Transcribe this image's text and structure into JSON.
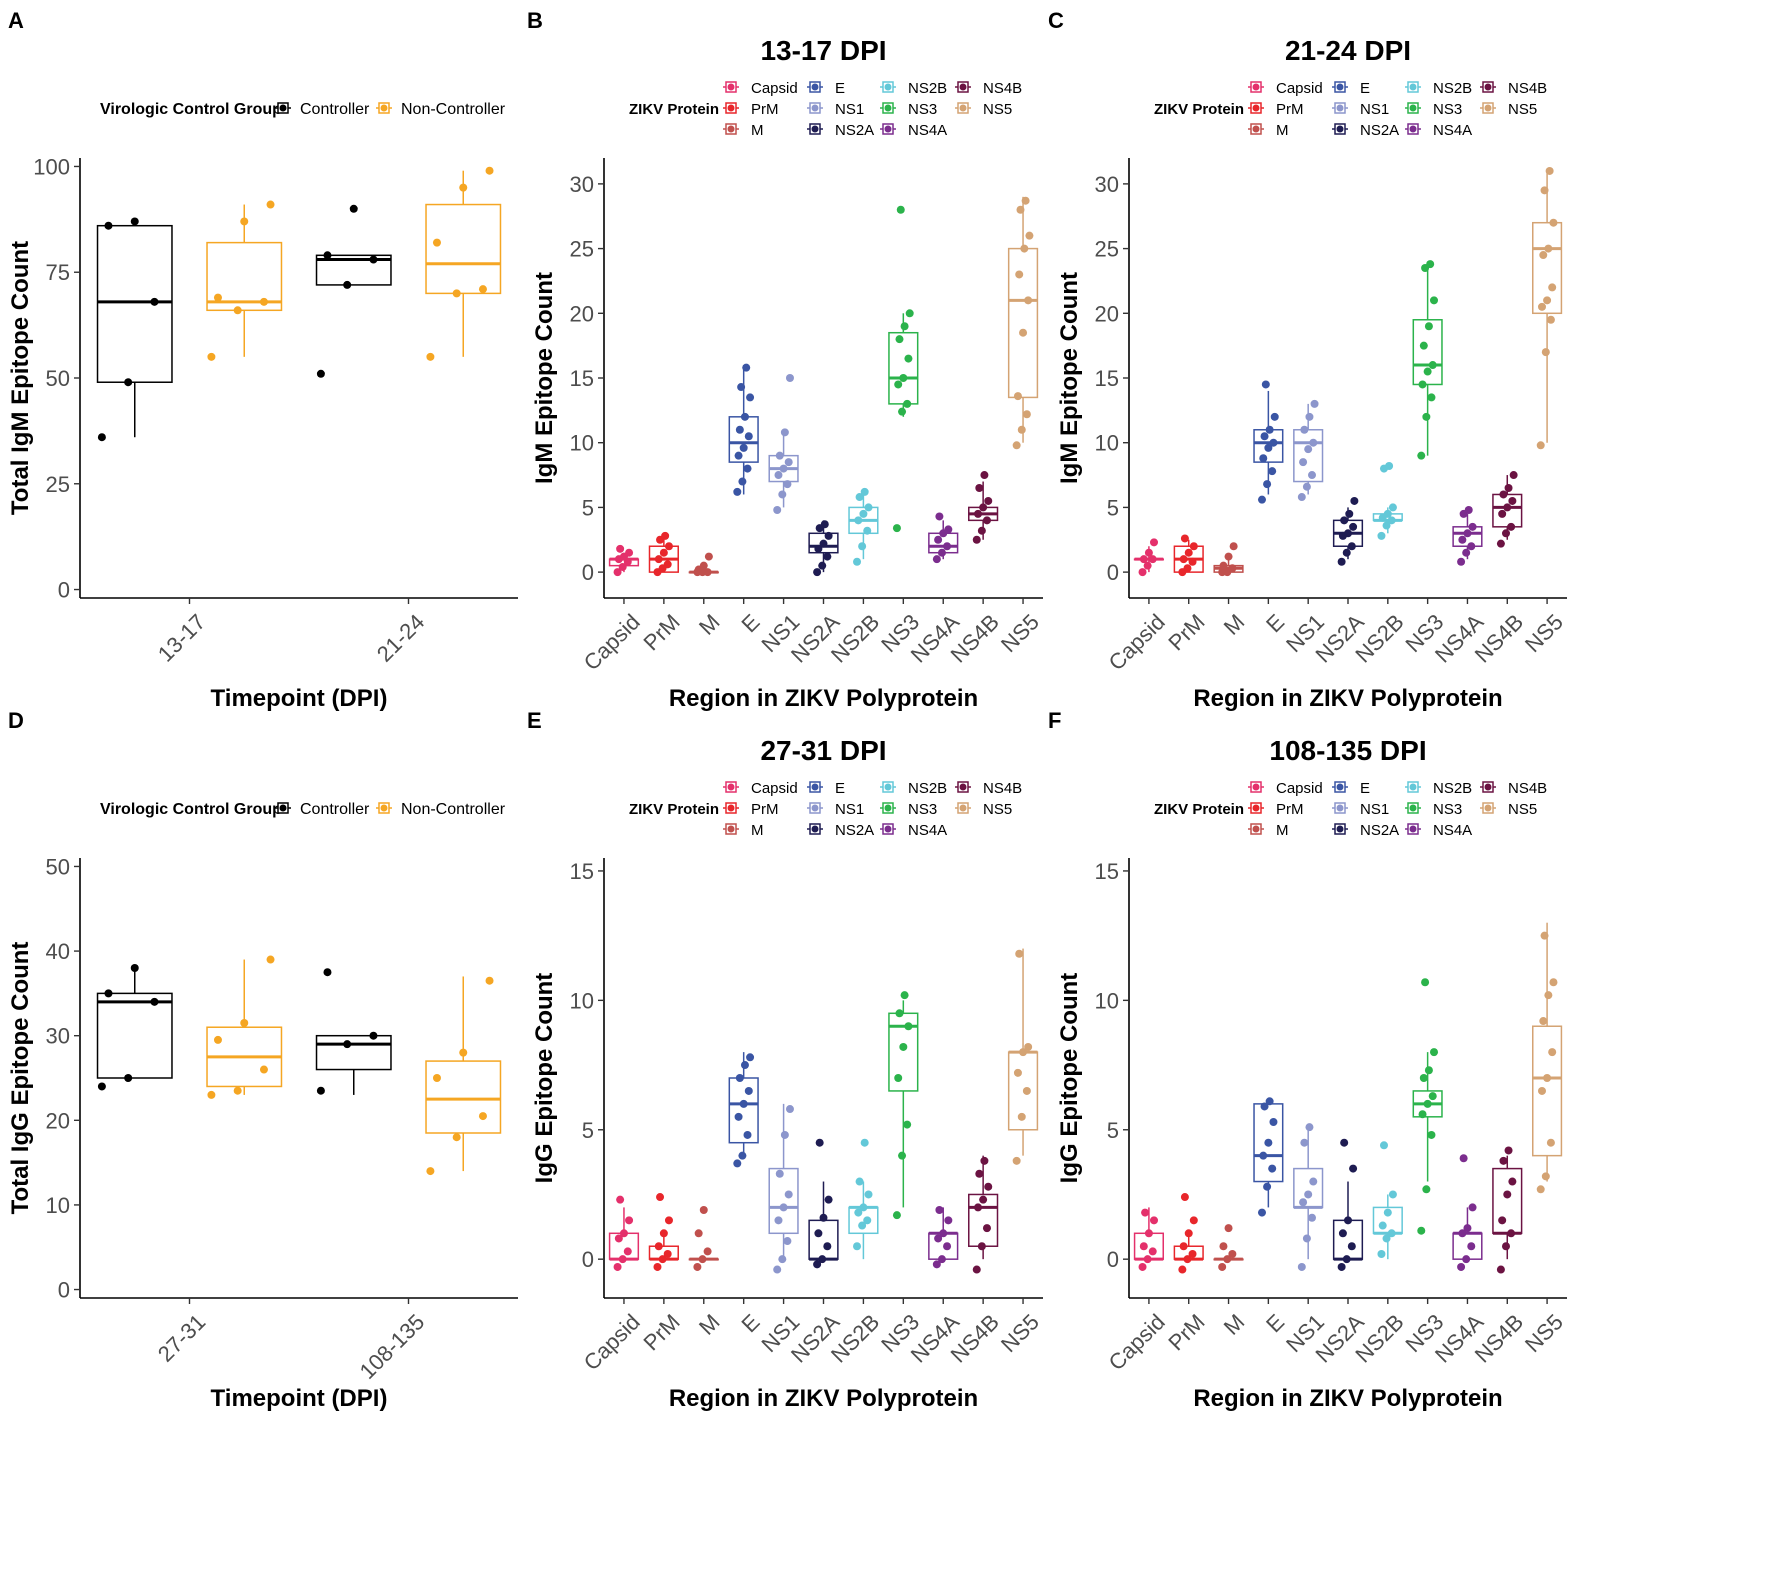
{
  "figure": {
    "groups_legend_title": "Virologic Control Group",
    "groups": [
      {
        "name": "Controller",
        "color": "#000000"
      },
      {
        "name": "Non-Controller",
        "color": "#F5A623"
      }
    ],
    "protein_legend_title": "ZIKV Protein",
    "proteins": [
      {
        "name": "Capsid",
        "color": "#E4306B"
      },
      {
        "name": "PrM",
        "color": "#E8262B"
      },
      {
        "name": "M",
        "color": "#C0504D"
      },
      {
        "name": "E",
        "color": "#3A55A4"
      },
      {
        "name": "NS1",
        "color": "#8C96CC"
      },
      {
        "name": "NS2A",
        "color": "#1E1C52"
      },
      {
        "name": "NS2B",
        "color": "#63C8D8"
      },
      {
        "name": "NS3",
        "color": "#2BB34B"
      },
      {
        "name": "NS4A",
        "color": "#7B2D8E"
      },
      {
        "name": "NS4B",
        "color": "#6B1342"
      },
      {
        "name": "NS5",
        "color": "#D4A373"
      }
    ]
  },
  "chart_data": [
    {
      "panel": "A",
      "type": "box",
      "title": "",
      "xlabel": "Timepoint (DPI)",
      "ylabel": "Total IgM Epitope Count",
      "ylim": [
        -2,
        102
      ],
      "yticks": [
        0,
        25,
        50,
        75,
        100
      ],
      "categories": [
        "13-17",
        "21-24"
      ],
      "series": [
        {
          "name": "Controller",
          "boxes": [
            {
              "min": 36,
              "q1": 49,
              "median": 68,
              "q3": 86,
              "max": 87
            },
            {
              "min": 72,
              "q1": 72,
              "median": 78,
              "q3": 79,
              "max": 79
            }
          ],
          "points": [
            [
              36,
              49,
              68,
              86,
              87
            ],
            [
              51,
              72,
              78,
              79,
              90
            ]
          ]
        },
        {
          "name": "Non-Controller",
          "boxes": [
            {
              "min": 55,
              "q1": 66,
              "median": 68,
              "q3": 82,
              "max": 91
            },
            {
              "min": 55,
              "q1": 70,
              "median": 77,
              "q3": 91,
              "max": 99
            }
          ],
          "points": [
            [
              55,
              66,
              68,
              69,
              87,
              91
            ],
            [
              55,
              70,
              71,
              82,
              95,
              99
            ]
          ]
        }
      ]
    },
    {
      "panel": "B",
      "type": "box",
      "title": "13-17 DPI",
      "xlabel": "Region in ZIKV Polyprotein",
      "ylabel": "IgM Epitope Count",
      "ylim": [
        -2,
        32
      ],
      "yticks": [
        0,
        5,
        10,
        15,
        20,
        25,
        30
      ],
      "categories": [
        "Capsid",
        "PrM",
        "M",
        "E",
        "NS1",
        "NS2A",
        "NS2B",
        "NS3",
        "NS4A",
        "NS4B",
        "NS5"
      ],
      "boxes": [
        {
          "min": 0,
          "q1": 0.5,
          "median": 1,
          "q3": 1,
          "max": 1.5
        },
        {
          "min": 0,
          "q1": 0,
          "median": 1,
          "q3": 2,
          "max": 3
        },
        {
          "min": 0,
          "q1": 0,
          "median": 0,
          "q3": 0,
          "max": 0
        },
        {
          "min": 6,
          "q1": 8.5,
          "median": 10,
          "q3": 12,
          "max": 16
        },
        {
          "min": 5,
          "q1": 7,
          "median": 8,
          "q3": 9,
          "max": 11
        },
        {
          "min": 0,
          "q1": 1.5,
          "median": 2,
          "q3": 3,
          "max": 4
        },
        {
          "min": 1,
          "q1": 3,
          "median": 4,
          "q3": 5,
          "max": 6
        },
        {
          "min": 12,
          "q1": 13,
          "median": 15,
          "q3": 18.5,
          "max": 20
        },
        {
          "min": 1,
          "q1": 1.5,
          "median": 2,
          "q3": 3,
          "max": 4
        },
        {
          "min": 2.5,
          "q1": 4,
          "median": 4.5,
          "q3": 5,
          "max": 7
        },
        {
          "min": 10,
          "q1": 13.5,
          "median": 21,
          "q3": 25,
          "max": 29
        }
      ],
      "points": [
        [
          0,
          0.4,
          0.8,
          1,
          1.2,
          1.5,
          1.8
        ],
        [
          0,
          0.3,
          0.6,
          1,
          1.5,
          2,
          2.5,
          2.8
        ],
        [
          0,
          0,
          0,
          0.2,
          0.5,
          1.2
        ],
        [
          6.2,
          7,
          8,
          9,
          9.6,
          10.5,
          11,
          12,
          13.5,
          14.3,
          15.8
        ],
        [
          4.8,
          6,
          6.8,
          7.5,
          8,
          8.5,
          9,
          10.8,
          15
        ],
        [
          0,
          0.5,
          1.2,
          1.8,
          2.2,
          2.8,
          3.4,
          3.7
        ],
        [
          0.8,
          2,
          3.2,
          4,
          4.5,
          5,
          5.8,
          6.2
        ],
        [
          3.4,
          12.4,
          13,
          14.5,
          15,
          16.5,
          18,
          19,
          20,
          28
        ],
        [
          1,
          1.5,
          2,
          2.5,
          3,
          3.3,
          4.3
        ],
        [
          2.5,
          3.2,
          4,
          4.5,
          5,
          5.5,
          6.5,
          7.5
        ],
        [
          9.8,
          11,
          12.2,
          13.6,
          18.5,
          21,
          23,
          25,
          26,
          28,
          28.7
        ]
      ]
    },
    {
      "panel": "C",
      "type": "box",
      "title": "21-24 DPI",
      "xlabel": "Region in ZIKV Polyprotein",
      "ylabel": "IgM Epitope Count",
      "ylim": [
        -2,
        32
      ],
      "yticks": [
        0,
        5,
        10,
        15,
        20,
        25,
        30
      ],
      "categories": [
        "Capsid",
        "PrM",
        "M",
        "E",
        "NS1",
        "NS2A",
        "NS2B",
        "NS3",
        "NS4A",
        "NS4B",
        "NS5"
      ],
      "boxes": [
        {
          "min": 0,
          "q1": 1,
          "median": 1,
          "q3": 1,
          "max": 2
        },
        {
          "min": 0,
          "q1": 0,
          "median": 1,
          "q3": 2,
          "max": 2.5
        },
        {
          "min": 0,
          "q1": 0,
          "median": 0.3,
          "q3": 0.5,
          "max": 1
        },
        {
          "min": 6,
          "q1": 8.5,
          "median": 10,
          "q3": 11,
          "max": 14
        },
        {
          "min": 6,
          "q1": 7,
          "median": 10,
          "q3": 11,
          "max": 13
        },
        {
          "min": 1,
          "q1": 2,
          "median": 3,
          "q3": 4,
          "max": 5
        },
        {
          "min": 3,
          "q1": 4,
          "median": 4,
          "q3": 4.5,
          "max": 5
        },
        {
          "min": 9,
          "q1": 14.5,
          "median": 16,
          "q3": 19.5,
          "max": 24
        },
        {
          "min": 1,
          "q1": 2,
          "median": 3,
          "q3": 3.5,
          "max": 4.5
        },
        {
          "min": 2.5,
          "q1": 3.5,
          "median": 5,
          "q3": 6,
          "max": 7.5
        },
        {
          "min": 10,
          "q1": 20,
          "median": 25,
          "q3": 27,
          "max": 31
        }
      ],
      "points": [
        [
          0,
          0.5,
          1,
          1,
          1.5,
          2.3
        ],
        [
          0,
          0.3,
          0.8,
          1,
          1.5,
          2,
          2.6
        ],
        [
          0,
          0,
          0.3,
          0.5,
          1.2,
          2
        ],
        [
          5.6,
          6.8,
          7.8,
          8.8,
          9.6,
          10,
          10.5,
          11,
          12,
          14.5
        ],
        [
          5.8,
          6.6,
          7.5,
          8.5,
          9.5,
          10,
          11,
          12,
          13
        ],
        [
          0.8,
          1.5,
          2,
          2.8,
          3,
          3.5,
          4,
          4.5,
          5.5
        ],
        [
          2.8,
          3.6,
          4,
          4.2,
          4.5,
          5,
          8,
          8.2
        ],
        [
          9,
          12,
          13.5,
          14.5,
          15.5,
          16,
          17.5,
          19,
          21,
          23.5,
          23.8
        ],
        [
          0.8,
          1.5,
          2,
          2.5,
          3,
          3.5,
          4.5,
          4.8
        ],
        [
          2.2,
          3,
          3.5,
          4.5,
          5,
          5.5,
          6,
          6.5,
          7.5
        ],
        [
          9.8,
          17,
          19.5,
          20.5,
          21,
          22,
          24.5,
          25,
          27,
          29.5,
          31
        ]
      ]
    },
    {
      "panel": "D",
      "type": "box",
      "title": "",
      "xlabel": "Timepoint (DPI)",
      "ylabel": "Total IgG Epitope Count",
      "ylim": [
        -1,
        51
      ],
      "yticks": [
        0,
        10,
        20,
        30,
        40,
        50
      ],
      "categories": [
        "27-31",
        "108-135"
      ],
      "series": [
        {
          "name": "Controller",
          "boxes": [
            {
              "min": 25,
              "q1": 25,
              "median": 34,
              "q3": 35,
              "max": 38
            },
            {
              "min": 23,
              "q1": 26,
              "median": 29,
              "q3": 30,
              "max": 30
            }
          ],
          "points": [
            [
              24,
              25,
              34,
              35,
              38
            ],
            [
              23.5,
              29,
              30,
              37.5
            ]
          ]
        },
        {
          "name": "Non-Controller",
          "boxes": [
            {
              "min": 23,
              "q1": 24,
              "median": 27.5,
              "q3": 31,
              "max": 39
            },
            {
              "min": 14,
              "q1": 18.5,
              "median": 22.5,
              "q3": 27,
              "max": 37
            }
          ],
          "points": [
            [
              23,
              23.5,
              26,
              29.5,
              31.5,
              39
            ],
            [
              14,
              18,
              20.5,
              25,
              28,
              36.5
            ]
          ]
        }
      ]
    },
    {
      "panel": "E",
      "type": "box",
      "title": "27-31 DPI",
      "xlabel": "Region in ZIKV Polyprotein",
      "ylabel": "IgG Epitope Count",
      "ylim": [
        -1.5,
        15.5
      ],
      "yticks": [
        0,
        5,
        10,
        15
      ],
      "categories": [
        "Capsid",
        "PrM",
        "M",
        "E",
        "NS1",
        "NS2A",
        "NS2B",
        "NS3",
        "NS4A",
        "NS4B",
        "NS5"
      ],
      "boxes": [
        {
          "min": 0,
          "q1": 0,
          "median": 0,
          "q3": 1,
          "max": 2
        },
        {
          "min": 0,
          "q1": 0,
          "median": 0,
          "q3": 0.5,
          "max": 1
        },
        {
          "min": 0,
          "q1": 0,
          "median": 0,
          "q3": 0,
          "max": 0
        },
        {
          "min": 4,
          "q1": 4.5,
          "median": 6,
          "q3": 7,
          "max": 8
        },
        {
          "min": 0,
          "q1": 1,
          "median": 2,
          "q3": 3.5,
          "max": 6
        },
        {
          "min": 0,
          "q1": 0,
          "median": 0,
          "q3": 1.5,
          "max": 3
        },
        {
          "min": 0,
          "q1": 1,
          "median": 2,
          "q3": 2,
          "max": 3
        },
        {
          "min": 2,
          "q1": 6.5,
          "median": 9,
          "q3": 9.5,
          "max": 10
        },
        {
          "min": 0,
          "q1": 0,
          "median": 1,
          "q3": 1,
          "max": 2
        },
        {
          "min": 0,
          "q1": 0.5,
          "median": 2,
          "q3": 2.5,
          "max": 4
        },
        {
          "min": 4,
          "q1": 5,
          "median": 8,
          "q3": 8,
          "max": 12
        }
      ],
      "points": [
        [
          -0.3,
          0,
          0.3,
          0.8,
          1,
          1.5,
          2.3
        ],
        [
          -0.3,
          0,
          0.2,
          0.5,
          1,
          1.5,
          2.4
        ],
        [
          -0.3,
          0,
          0.3,
          1,
          1.9
        ],
        [
          3.7,
          4,
          4.8,
          5.5,
          6,
          6.5,
          7,
          7.5,
          7.8
        ],
        [
          -0.4,
          0,
          0.7,
          1.5,
          2,
          2.5,
          3.3,
          4.8,
          5.8
        ],
        [
          -0.2,
          0,
          0.5,
          1,
          1.6,
          2.3,
          4.5
        ],
        [
          0.5,
          1.3,
          1.5,
          1.8,
          2,
          2.5,
          3,
          4.5
        ],
        [
          1.7,
          4,
          5.2,
          7,
          8.2,
          9,
          9.5,
          10.2
        ],
        [
          -0.2,
          0,
          0.5,
          0.8,
          1,
          1.5,
          1.9
        ],
        [
          -0.4,
          0.5,
          1.2,
          2,
          2.3,
          2.8,
          3.3,
          3.8
        ],
        [
          3.8,
          5.5,
          6.5,
          7.2,
          8,
          8.2,
          11.8
        ]
      ]
    },
    {
      "panel": "F",
      "type": "box",
      "title": "108-135 DPI",
      "xlabel": "Region in ZIKV Polyprotein",
      "ylabel": "IgG Epitope Count",
      "ylim": [
        -1.5,
        15.5
      ],
      "yticks": [
        0,
        5,
        10,
        15
      ],
      "categories": [
        "Capsid",
        "PrM",
        "M",
        "E",
        "NS1",
        "NS2A",
        "NS2B",
        "NS3",
        "NS4A",
        "NS4B",
        "NS5"
      ],
      "boxes": [
        {
          "min": 0,
          "q1": 0,
          "median": 0,
          "q3": 1,
          "max": 2
        },
        {
          "min": 0,
          "q1": 0,
          "median": 0,
          "q3": 0.5,
          "max": 1
        },
        {
          "min": 0,
          "q1": 0,
          "median": 0,
          "q3": 0,
          "max": 0
        },
        {
          "min": 2,
          "q1": 3,
          "median": 4,
          "q3": 6,
          "max": 6
        },
        {
          "min": 0,
          "q1": 2,
          "median": 2,
          "q3": 3.5,
          "max": 5
        },
        {
          "min": 0,
          "q1": 0,
          "median": 0,
          "q3": 1.5,
          "max": 3
        },
        {
          "min": 0,
          "q1": 1,
          "median": 1,
          "q3": 2,
          "max": 2.5
        },
        {
          "min": 3,
          "q1": 5.5,
          "median": 6,
          "q3": 6.5,
          "max": 8
        },
        {
          "min": 0,
          "q1": 0,
          "median": 1,
          "q3": 1,
          "max": 2
        },
        {
          "min": 0,
          "q1": 1,
          "median": 1,
          "q3": 3.5,
          "max": 4
        },
        {
          "min": 3,
          "q1": 4,
          "median": 7,
          "q3": 9,
          "max": 13
        }
      ],
      "points": [
        [
          -0.3,
          0,
          0.3,
          0.5,
          1,
          1.5,
          1.8
        ],
        [
          -0.4,
          0,
          0.2,
          0.5,
          1,
          1.5,
          2.4
        ],
        [
          -0.3,
          0,
          0.2,
          0.5,
          1.2
        ],
        [
          1.8,
          2.8,
          3.5,
          4,
          4.5,
          5.3,
          5.9,
          6.1
        ],
        [
          -0.3,
          0.8,
          1.6,
          2.2,
          2.5,
          3,
          4.5,
          5.1
        ],
        [
          -0.3,
          0,
          0.5,
          1,
          1.5,
          3.5,
          4.5
        ],
        [
          0.2,
          0.8,
          1,
          1.3,
          1.8,
          2.5,
          4.4
        ],
        [
          1.1,
          2.7,
          4.8,
          5.6,
          6,
          6.3,
          7,
          7.3,
          8,
          10.7
        ],
        [
          -0.3,
          0,
          0.5,
          1,
          1.2,
          2,
          3.9
        ],
        [
          -0.4,
          0.5,
          1,
          1.5,
          2.5,
          3,
          3.8,
          4.2
        ],
        [
          2.7,
          3.2,
          4.5,
          6.5,
          7,
          8,
          9.2,
          10.2,
          10.7,
          12.5
        ]
      ]
    }
  ]
}
